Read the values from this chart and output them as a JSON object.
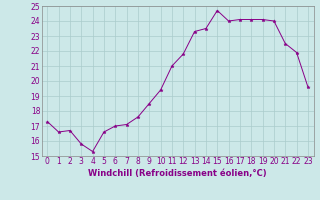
{
  "x": [
    0,
    1,
    2,
    3,
    4,
    5,
    6,
    7,
    8,
    9,
    10,
    11,
    12,
    13,
    14,
    15,
    16,
    17,
    18,
    19,
    20,
    21,
    22,
    23
  ],
  "y": [
    17.3,
    16.6,
    16.7,
    15.8,
    15.3,
    16.6,
    17.0,
    17.1,
    17.6,
    18.5,
    19.4,
    21.0,
    21.8,
    23.3,
    23.5,
    24.7,
    24.0,
    24.1,
    24.1,
    24.1,
    24.0,
    22.5,
    21.9,
    19.6
  ],
  "line_color": "#880088",
  "marker": "*",
  "marker_size": 2.5,
  "bg_color": "#cce8e8",
  "grid_color": "#aacccc",
  "xlabel": "Windchill (Refroidissement éolien,°C)",
  "xlabel_fontsize": 6.0,
  "tick_fontsize": 5.5,
  "ylim": [
    15,
    25
  ],
  "yticks": [
    15,
    16,
    17,
    18,
    19,
    20,
    21,
    22,
    23,
    24,
    25
  ],
  "xticks": [
    0,
    1,
    2,
    3,
    4,
    5,
    6,
    7,
    8,
    9,
    10,
    11,
    12,
    13,
    14,
    15,
    16,
    17,
    18,
    19,
    20,
    21,
    22,
    23
  ],
  "spine_color": "#888888",
  "line_width": 0.7,
  "fig_width": 3.2,
  "fig_height": 2.0,
  "dpi": 100
}
